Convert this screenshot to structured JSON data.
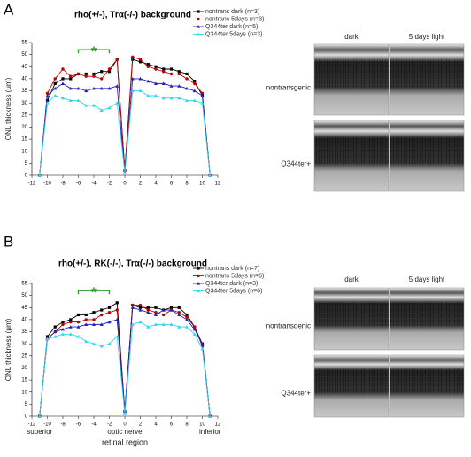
{
  "figure": {
    "panels": [
      {
        "label": "A",
        "columns": [
          "dark",
          "5 days light"
        ],
        "rows": [
          "nontransgenic",
          "Q344ter+"
        ]
      },
      {
        "label": "B",
        "columns": [
          "dark",
          "5 days light"
        ],
        "rows": [
          "nontransgenic",
          "Q344ter+"
        ]
      }
    ]
  },
  "chart_data": [
    {
      "type": "line",
      "title": "rho(+/-), Trα(-/-) background",
      "ylabel": "ONL thickness (μm)",
      "annotation": "*",
      "x": [
        -11,
        -10,
        -9,
        -8,
        -7,
        -6,
        -5,
        -4,
        -3,
        -2,
        -1,
        0,
        1,
        2,
        3,
        4,
        5,
        6,
        7,
        8,
        9,
        10,
        11
      ],
      "xlim": [
        -12,
        12
      ],
      "xticks": [
        -12,
        -10,
        -8,
        -6,
        -4,
        -2,
        0,
        2,
        4,
        6,
        8,
        10,
        12
      ],
      "ylim": [
        0,
        55
      ],
      "yticks": [
        0,
        5,
        10,
        15,
        20,
        25,
        30,
        35,
        40,
        45,
        50,
        55
      ],
      "series": [
        {
          "name": "nontrans dark (n=3)",
          "color": "#000000",
          "marker": "square",
          "values": [
            0,
            31,
            38,
            40,
            40,
            42,
            42,
            42,
            43,
            43,
            48,
            2,
            48,
            47,
            46,
            45,
            44,
            44,
            43,
            42,
            39,
            33,
            0
          ]
        },
        {
          "name": "nontrans 5days (n=3)",
          "color": "#c00000",
          "marker": "circle",
          "values": [
            0,
            34,
            40,
            44,
            41,
            42,
            41,
            41,
            40,
            44,
            48,
            2,
            49,
            48,
            45,
            44,
            43,
            42,
            42,
            40,
            38,
            34,
            0
          ]
        },
        {
          "name": "Q344ter dark (n=5)",
          "color": "#2020c0",
          "marker": "triangle",
          "values": [
            0,
            33,
            36,
            38,
            36,
            36,
            35,
            36,
            36,
            36,
            37,
            1,
            40,
            40,
            39,
            38,
            38,
            37,
            37,
            36,
            35,
            33,
            0
          ]
        },
        {
          "name": "Q344ter 5days (n=3)",
          "color": "#30d8ee",
          "marker": "triangle",
          "values": [
            0,
            30,
            33,
            32,
            31,
            31,
            29,
            29,
            27,
            28,
            30,
            1,
            35,
            35,
            33,
            33,
            32,
            32,
            32,
            31,
            31,
            30,
            0
          ]
        }
      ]
    },
    {
      "type": "line",
      "title": "rho(+/-), RK(-/-), Trα(-/-) background",
      "ylabel": "ONL thickness (μm)",
      "xlabel": "retinal region",
      "annotation": "*",
      "x": [
        -11,
        -10,
        -9,
        -8,
        -7,
        -6,
        -5,
        -4,
        -3,
        -2,
        -1,
        0,
        1,
        2,
        3,
        4,
        5,
        6,
        7,
        8,
        9,
        10,
        11
      ],
      "xlim": [
        -12,
        12
      ],
      "xticks": [
        -12,
        -10,
        -8,
        -6,
        -4,
        -2,
        0,
        2,
        4,
        6,
        8,
        10,
        12
      ],
      "region_labels": [
        {
          "value": -11,
          "label": "superior"
        },
        {
          "value": 0,
          "label": "optic nerve"
        },
        {
          "value": 11,
          "label": "inferior"
        }
      ],
      "ylim": [
        0,
        55
      ],
      "yticks": [
        0,
        5,
        10,
        15,
        20,
        25,
        30,
        35,
        40,
        45,
        50,
        55
      ],
      "series": [
        {
          "name": "nontrans dark (n=7)",
          "color": "#000000",
          "marker": "square",
          "values": [
            0,
            33,
            37,
            39,
            40,
            42,
            42,
            43,
            44,
            45,
            47,
            2,
            46,
            45,
            45,
            45,
            44,
            45,
            45,
            42,
            37,
            30,
            0
          ]
        },
        {
          "name": "nontrans 5days (n=6)",
          "color": "#c00000",
          "marker": "circle",
          "values": [
            0,
            32,
            35,
            38,
            39,
            39,
            40,
            40,
            42,
            43,
            44,
            2,
            46,
            46,
            44,
            43,
            42,
            44,
            43,
            41,
            37,
            29,
            0
          ]
        },
        {
          "name": "Q344ter dark (n=3)",
          "color": "#2020c0",
          "marker": "triangle",
          "values": [
            0,
            32,
            35,
            36,
            37,
            37,
            38,
            38,
            38,
            39,
            40,
            2,
            45,
            44,
            43,
            42,
            44,
            44,
            42,
            40,
            36,
            30,
            0
          ]
        },
        {
          "name": "Q344ter 5days (n=6)",
          "color": "#30d8ee",
          "marker": "triangle",
          "values": [
            0,
            32,
            33,
            34,
            34,
            33,
            31,
            30,
            29,
            30,
            33,
            1,
            38,
            39,
            37,
            38,
            38,
            38,
            37,
            37,
            34,
            28,
            0
          ]
        }
      ]
    }
  ]
}
